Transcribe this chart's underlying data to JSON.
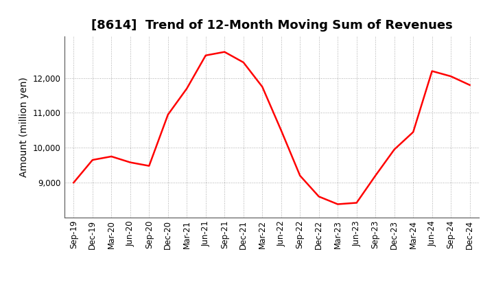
{
  "title": "[8614]  Trend of 12-Month Moving Sum of Revenues",
  "ylabel": "Amount (million yen)",
  "x_labels": [
    "Sep-19",
    "Dec-19",
    "Mar-20",
    "Jun-20",
    "Sep-20",
    "Dec-20",
    "Mar-21",
    "Jun-21",
    "Sep-21",
    "Dec-21",
    "Mar-22",
    "Jun-22",
    "Sep-22",
    "Dec-22",
    "Mar-23",
    "Jun-23",
    "Sep-23",
    "Dec-23",
    "Mar-24",
    "Jun-24",
    "Sep-24",
    "Dec-24"
  ],
  "y_values": [
    9000,
    9650,
    9750,
    9580,
    9480,
    10950,
    11700,
    12650,
    12750,
    12450,
    11750,
    10500,
    9200,
    8600,
    8380,
    8420,
    9200,
    9950,
    10450,
    12200,
    12050,
    11800
  ],
  "line_color": "#FF0000",
  "line_width": 1.8,
  "background_color": "#FFFFFF",
  "grid_color": "#AAAAAA",
  "ylim_min": 8000,
  "ylim_max": 13200,
  "yticks": [
    9000,
    10000,
    11000,
    12000
  ],
  "title_fontsize": 13,
  "ylabel_fontsize": 10,
  "tick_fontsize": 8.5
}
